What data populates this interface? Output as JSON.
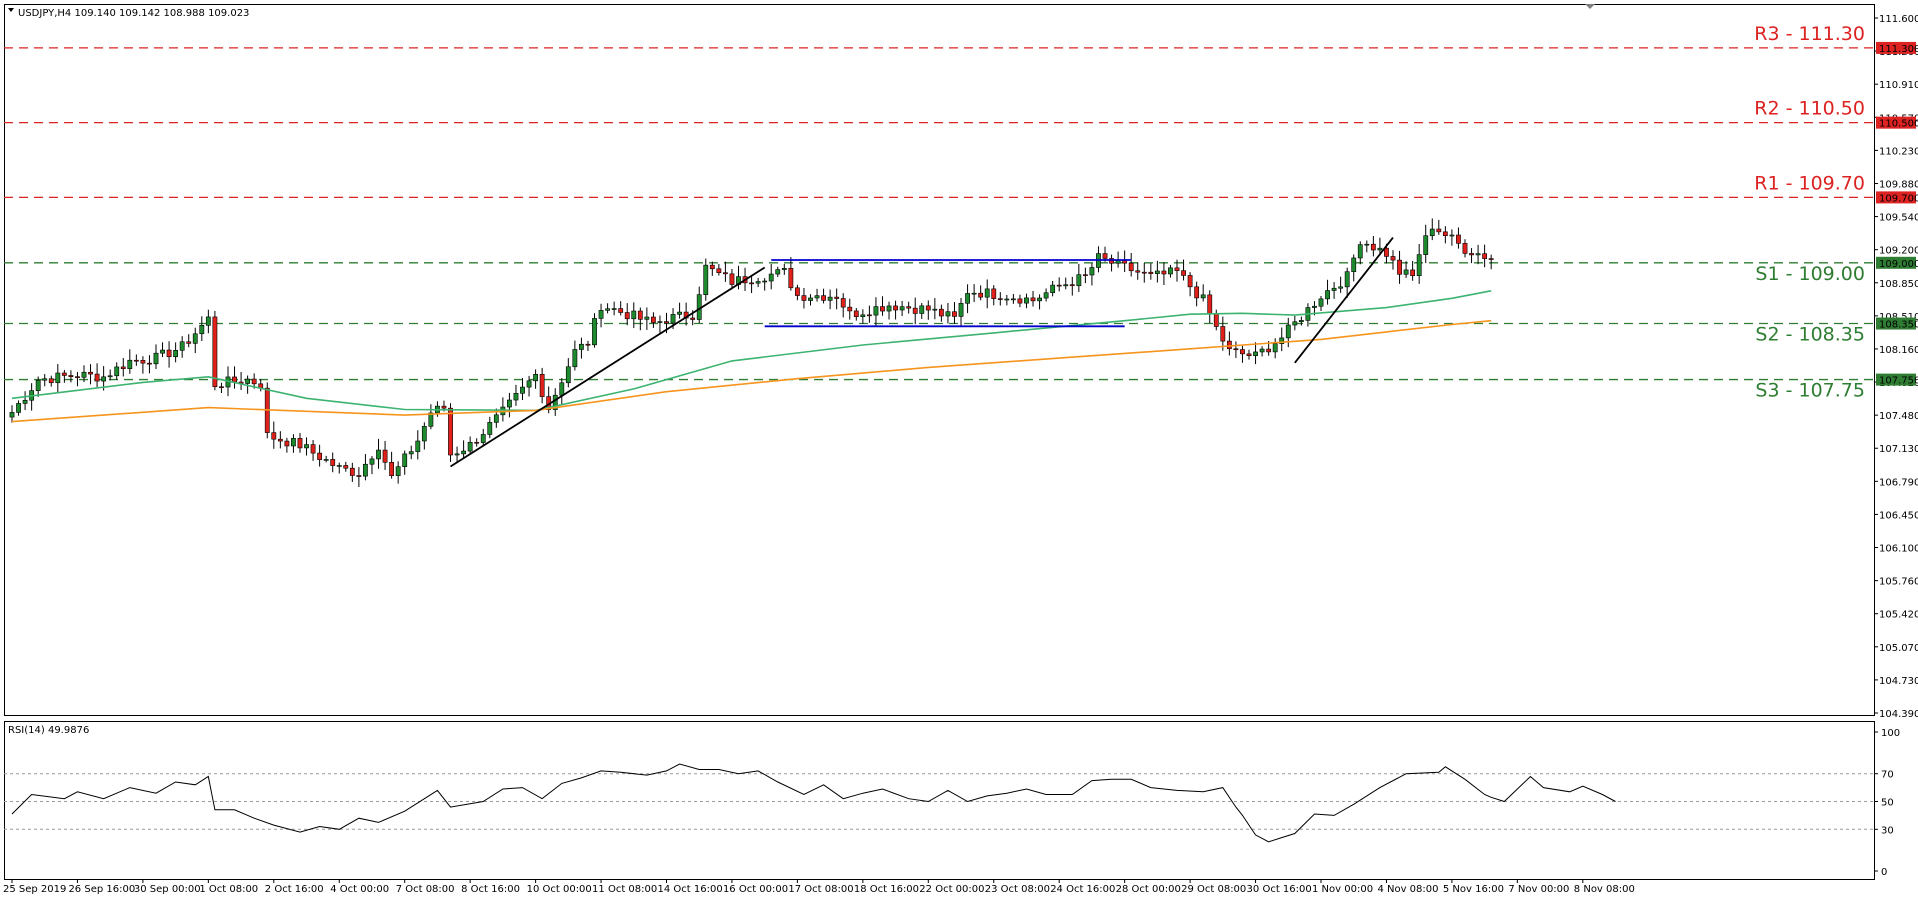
{
  "chart_data": {
    "type": "candlestick",
    "header": "USDJPY,H4  109.140 109.142 108.988 109.023",
    "price_axis": {
      "ylim": [
        104.16,
        111.77
      ],
      "ticks": [
        "111.600",
        "111.260",
        "110.910",
        "110.570",
        "110.230",
        "109.880",
        "109.540",
        "109.200",
        "108.850",
        "108.510",
        "108.160",
        "107.820",
        "107.480",
        "107.130",
        "106.790",
        "106.450",
        "106.100",
        "105.760",
        "105.420",
        "105.070",
        "104.730",
        "104.390"
      ]
    },
    "levels": [
      {
        "name": "R3",
        "price": 111.3,
        "label": "R3 - 111.30",
        "tag": "111.300",
        "color": "#dd2222",
        "style": "dashed"
      },
      {
        "name": "R2",
        "price": 110.5,
        "label": "R2 - 110.50",
        "tag": "110.500",
        "color": "#dd2222",
        "style": "dashed"
      },
      {
        "name": "R1",
        "price": 109.7,
        "label": "R1 - 109.70",
        "tag": "109.700",
        "color": "#dd2222",
        "style": "dashed"
      },
      {
        "name": "S1",
        "price": 109.0,
        "label": "S1 - 109.00",
        "tag": "109.000",
        "color": "#2e7d32",
        "style": "dashed"
      },
      {
        "name": "S2",
        "price": 108.35,
        "label": "S2 - 108.35",
        "tag": "108.350",
        "color": "#2e7d32",
        "style": "dashed"
      },
      {
        "name": "S3",
        "price": 107.75,
        "label": "S3 - 107.75",
        "tag": "107.750",
        "color": "#2e7d32",
        "style": "dashed"
      }
    ],
    "time_labels": [
      {
        "label": "25 Sep 2019",
        "i": 0
      },
      {
        "label": "26 Sep 16:00",
        "i": 10
      },
      {
        "label": "30 Sep 00:00",
        "i": 20
      },
      {
        "label": "1 Oct 08:00",
        "i": 30
      },
      {
        "label": "2 Oct 16:00",
        "i": 40
      },
      {
        "label": "4 Oct 00:00",
        "i": 50
      },
      {
        "label": "7 Oct 08:00",
        "i": 60
      },
      {
        "label": "8 Oct 16:00",
        "i": 70
      },
      {
        "label": "10 Oct 00:00",
        "i": 80
      },
      {
        "label": "11 Oct 08:00",
        "i": 90
      },
      {
        "label": "14 Oct 16:00",
        "i": 100
      },
      {
        "label": "16 Oct 00:00",
        "i": 110
      },
      {
        "label": "17 Oct 08:00",
        "i": 120
      },
      {
        "label": "18 Oct 16:00",
        "i": 130
      },
      {
        "label": "22 Oct 00:00",
        "i": 140
      },
      {
        "label": "23 Oct 08:00",
        "i": 150
      },
      {
        "label": "24 Oct 16:00",
        "i": 160
      },
      {
        "label": "28 Oct 00:00",
        "i": 170
      },
      {
        "label": "29 Oct 08:00",
        "i": 180
      },
      {
        "label": "30 Oct 16:00",
        "i": 190
      },
      {
        "label": "1 Nov 00:00",
        "i": 200
      },
      {
        "label": "4 Nov 08:00",
        "i": 210
      },
      {
        "label": "5 Nov 16:00",
        "i": 220
      },
      {
        "label": "7 Nov 00:00",
        "i": 230
      },
      {
        "label": "8 Nov 08:00",
        "i": 240
      }
    ],
    "anchors": [
      [
        0,
        107.4
      ],
      [
        4,
        107.75
      ],
      [
        10,
        107.8
      ],
      [
        14,
        107.78
      ],
      [
        18,
        107.95
      ],
      [
        22,
        107.98
      ],
      [
        26,
        108.1
      ],
      [
        30,
        108.4
      ],
      [
        31,
        107.7
      ],
      [
        36,
        107.75
      ],
      [
        38,
        107.7
      ],
      [
        39,
        107.15
      ],
      [
        44,
        107.05
      ],
      [
        50,
        106.8
      ],
      [
        53,
        106.75
      ],
      [
        56,
        107.05
      ],
      [
        58,
        106.7
      ],
      [
        62,
        107.1
      ],
      [
        64,
        107.4
      ],
      [
        66,
        107.45
      ],
      [
        67,
        106.95
      ],
      [
        70,
        107.05
      ],
      [
        75,
        107.4
      ],
      [
        80,
        107.8
      ],
      [
        82,
        107.45
      ],
      [
        86,
        108.05
      ],
      [
        88,
        108.15
      ],
      [
        90,
        108.55
      ],
      [
        94,
        108.45
      ],
      [
        98,
        108.35
      ],
      [
        100,
        108.4
      ],
      [
        104,
        108.45
      ],
      [
        106,
        108.95
      ],
      [
        110,
        108.8
      ],
      [
        114,
        108.85
      ],
      [
        118,
        108.9
      ],
      [
        120,
        108.65
      ],
      [
        126,
        108.65
      ],
      [
        128,
        108.45
      ],
      [
        134,
        108.55
      ],
      [
        140,
        108.5
      ],
      [
        144,
        108.4
      ],
      [
        146,
        108.7
      ],
      [
        152,
        108.65
      ],
      [
        156,
        108.6
      ],
      [
        160,
        108.75
      ],
      [
        164,
        108.85
      ],
      [
        166,
        109.05
      ],
      [
        170,
        108.95
      ],
      [
        174,
        108.85
      ],
      [
        178,
        108.9
      ],
      [
        180,
        108.75
      ],
      [
        182,
        108.6
      ],
      [
        184,
        108.3
      ],
      [
        186,
        108.05
      ],
      [
        190,
        108.0
      ],
      [
        192,
        108.1
      ],
      [
        194,
        108.2
      ],
      [
        196,
        108.35
      ],
      [
        200,
        108.65
      ],
      [
        204,
        108.85
      ],
      [
        206,
        109.25
      ],
      [
        210,
        109.1
      ],
      [
        212,
        108.9
      ],
      [
        214,
        108.85
      ],
      [
        215,
        109.1
      ],
      [
        217,
        109.4
      ],
      [
        222,
        109.15
      ],
      [
        226,
        109.05
      ]
    ],
    "series": [
      {
        "name": "SMA fast",
        "color": "#3cb371",
        "points": [
          [
            0,
            107.55
          ],
          [
            20,
            107.72
          ],
          [
            30,
            107.78
          ],
          [
            45,
            107.55
          ],
          [
            60,
            107.43
          ],
          [
            80,
            107.42
          ],
          [
            95,
            107.65
          ],
          [
            110,
            107.95
          ],
          [
            130,
            108.12
          ],
          [
            150,
            108.25
          ],
          [
            170,
            108.38
          ],
          [
            180,
            108.45
          ],
          [
            188,
            108.46
          ],
          [
            196,
            108.44
          ],
          [
            210,
            108.52
          ],
          [
            220,
            108.62
          ],
          [
            226,
            108.7
          ]
        ]
      },
      {
        "name": "SMA slow",
        "color": "#f7941d",
        "points": [
          [
            0,
            107.3
          ],
          [
            30,
            107.45
          ],
          [
            60,
            107.37
          ],
          [
            80,
            107.42
          ],
          [
            100,
            107.62
          ],
          [
            120,
            107.76
          ],
          [
            140,
            107.88
          ],
          [
            160,
            107.98
          ],
          [
            180,
            108.08
          ],
          [
            200,
            108.18
          ],
          [
            210,
            108.26
          ],
          [
            220,
            108.34
          ],
          [
            226,
            108.38
          ]
        ]
      }
    ],
    "trendlines": [
      {
        "color": "#000000",
        "points": [
          [
            67,
            106.82
          ],
          [
            115,
            108.95
          ]
        ]
      },
      {
        "color": "#000000",
        "points": [
          [
            196,
            107.93
          ],
          [
            211,
            109.27
          ]
        ]
      },
      {
        "color": "#0000cc",
        "points": [
          [
            116,
            109.03
          ],
          [
            171,
            109.03
          ]
        ]
      },
      {
        "color": "#0000cc",
        "points": [
          [
            115,
            108.32
          ],
          [
            170,
            108.32
          ]
        ]
      }
    ],
    "rsi": {
      "title": "RSI(14) 49.9876",
      "ylim": [
        0,
        100
      ],
      "ticks": [
        100,
        70,
        50,
        30,
        0
      ],
      "grid": [
        70,
        50,
        30
      ],
      "points": [
        [
          0,
          41
        ],
        [
          3,
          55
        ],
        [
          8,
          52
        ],
        [
          10,
          57
        ],
        [
          14,
          52
        ],
        [
          18,
          60
        ],
        [
          22,
          56
        ],
        [
          25,
          64
        ],
        [
          28,
          62
        ],
        [
          30,
          68
        ],
        [
          31,
          44
        ],
        [
          34,
          44
        ],
        [
          37,
          38
        ],
        [
          40,
          33
        ],
        [
          44,
          28
        ],
        [
          47,
          32
        ],
        [
          50,
          30
        ],
        [
          53,
          38
        ],
        [
          56,
          35
        ],
        [
          60,
          43
        ],
        [
          65,
          58
        ],
        [
          67,
          46
        ],
        [
          72,
          50
        ],
        [
          75,
          59
        ],
        [
          78,
          60
        ],
        [
          81,
          52
        ],
        [
          84,
          63
        ],
        [
          87,
          67
        ],
        [
          90,
          72
        ],
        [
          93,
          71
        ],
        [
          97,
          69
        ],
        [
          100,
          72
        ],
        [
          102,
          77
        ],
        [
          105,
          73
        ],
        [
          108,
          73
        ],
        [
          111,
          70
        ],
        [
          114,
          72
        ],
        [
          117,
          64
        ],
        [
          121,
          55
        ],
        [
          124,
          62
        ],
        [
          127,
          52
        ],
        [
          130,
          56
        ],
        [
          133,
          59
        ],
        [
          137,
          52
        ],
        [
          140,
          50
        ],
        [
          143,
          58
        ],
        [
          146,
          50
        ],
        [
          149,
          54
        ],
        [
          152,
          56
        ],
        [
          155,
          59
        ],
        [
          158,
          55
        ],
        [
          162,
          55
        ],
        [
          165,
          65
        ],
        [
          168,
          66
        ],
        [
          171,
          66
        ],
        [
          174,
          60
        ],
        [
          178,
          58
        ],
        [
          182,
          57
        ],
        [
          185,
          60
        ],
        [
          187,
          46
        ],
        [
          188,
          40
        ],
        [
          190,
          26
        ],
        [
          192,
          21
        ],
        [
          194,
          24
        ],
        [
          196,
          27
        ],
        [
          199,
          41
        ],
        [
          202,
          40
        ],
        [
          205,
          48
        ],
        [
          209,
          60
        ],
        [
          213,
          70
        ],
        [
          218,
          71
        ],
        [
          219,
          75
        ],
        [
          222,
          66
        ],
        [
          225,
          55
        ],
        [
          226,
          53
        ],
        [
          228,
          50
        ],
        [
          232,
          68
        ],
        [
          234,
          60
        ],
        [
          238,
          57
        ],
        [
          240,
          61
        ],
        [
          243,
          55
        ],
        [
          245,
          50
        ]
      ]
    }
  }
}
